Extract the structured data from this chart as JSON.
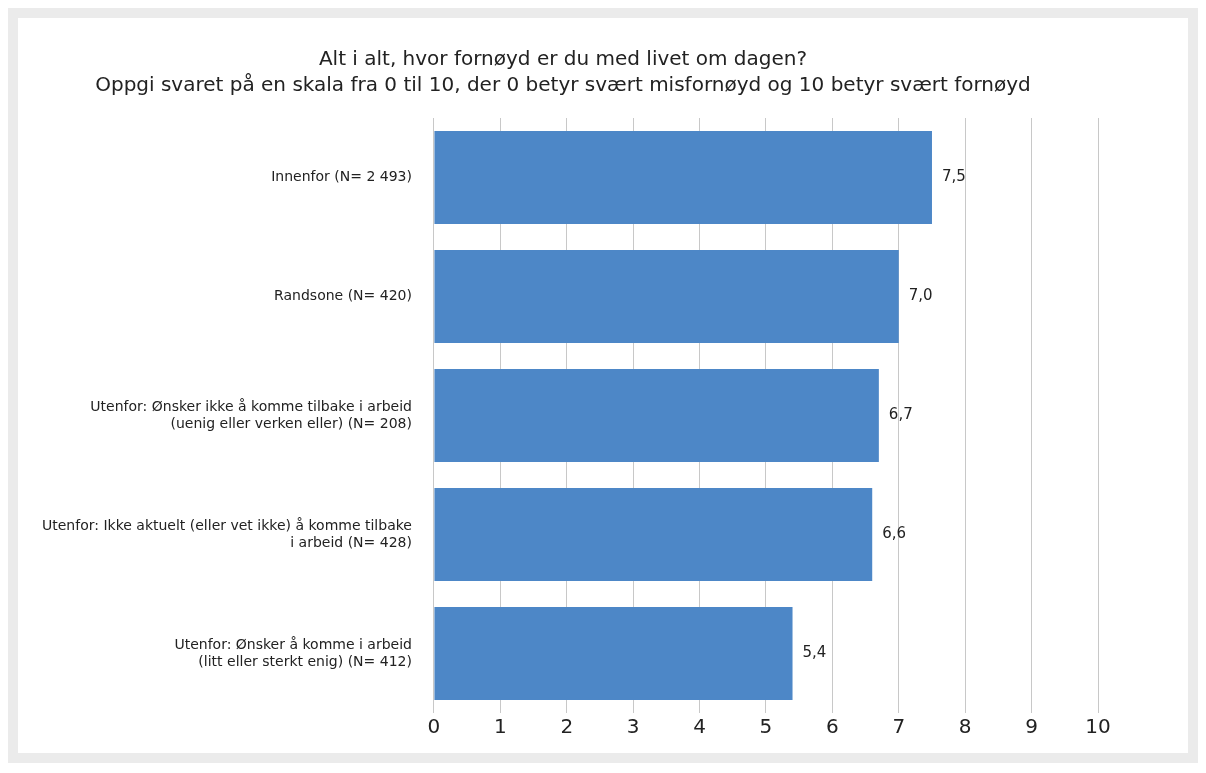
{
  "chart_data": {
    "type": "bar",
    "orientation": "horizontal",
    "title": "Alt i alt, hvor fornøyd er du med livet om dagen?",
    "subtitle": "Oppgi svaret på en skala fra 0 til 10, der 0 betyr svært misfornøyd og 10 betyr svært fornøyd",
    "categories": [
      "Innenfor (N= 2 493)",
      "Randsone (N= 420)",
      "Utenfor: Ønsker ikke å komme tilbake i arbeid\n(uenig eller verken eller) (N= 208)",
      "Utenfor: Ikke aktuelt (eller vet ikke) å komme tilbake\ni arbeid (N= 428)",
      "Utenfor: Ønsker å komme i arbeid\n(litt eller sterkt enig) (N= 412)"
    ],
    "values": [
      7.5,
      7.0,
      6.7,
      6.6,
      5.4
    ],
    "value_labels": [
      "7,5",
      "7,0",
      "6,7",
      "6,6",
      "5,4"
    ],
    "color": "#4d87c7",
    "xlim": [
      0,
      10
    ],
    "xticks": [
      0,
      1,
      2,
      3,
      4,
      5,
      6,
      7,
      8,
      9,
      10
    ],
    "grid": "x",
    "legend": false
  }
}
